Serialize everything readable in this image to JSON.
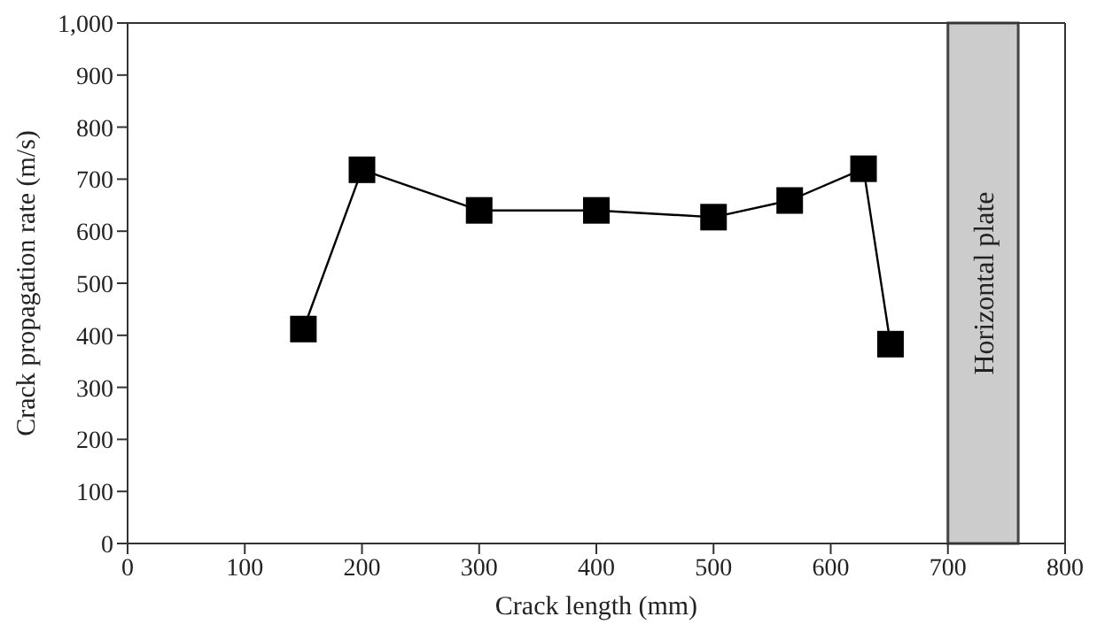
{
  "chart_data": {
    "type": "line",
    "xlabel": "Crack length (mm)",
    "ylabel": "Crack propagation rate (m/s)",
    "x": [
      150,
      200,
      300,
      400,
      500,
      565,
      628,
      651
    ],
    "series": [
      {
        "color": "#000000",
        "values": [
          412,
          718,
          640,
          640,
          627,
          659,
          720,
          383
        ]
      }
    ],
    "xlim": [
      0,
      800
    ],
    "xticks": [
      0,
      100,
      200,
      300,
      400,
      500,
      600,
      700,
      800
    ],
    "ylim": [
      0,
      1000
    ],
    "yticks": [
      0,
      100,
      200,
      300,
      400,
      500,
      600,
      700,
      800,
      900,
      {
        "value": 1000,
        "label": "1,000"
      }
    ],
    "bands": [
      {
        "axis": "x",
        "from": 700,
        "to": 760,
        "label": "Horizontal plate",
        "color": "#cccccc"
      }
    ],
    "marker": "square",
    "line_style": "solid"
  }
}
